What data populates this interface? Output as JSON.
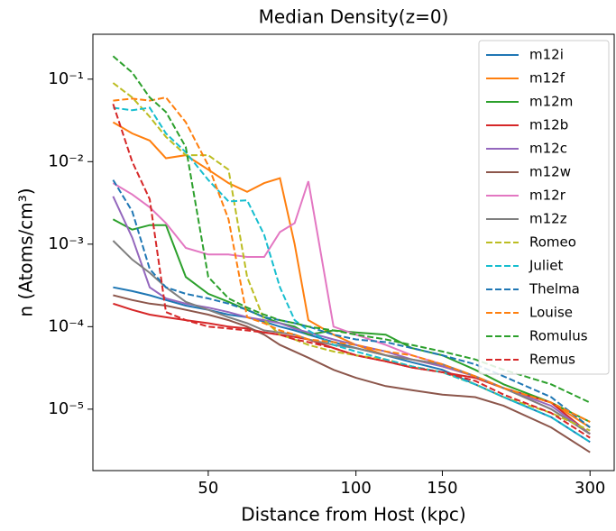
{
  "chart_data": {
    "type": "line",
    "title": "Median Density(z=0)",
    "x_label": "Distance from Host (kpc)",
    "y_label": "n (Atoms/cm³)",
    "x_scale": "log",
    "y_scale": "log",
    "legend": "upper right",
    "xlim": [
      29.1,
      336
    ],
    "ylim": [
      1.8e-06,
      0.35
    ],
    "xticks": [
      50,
      100,
      150,
      300
    ],
    "yticks": [
      {
        "value": 0.1,
        "label": "10⁻¹"
      },
      {
        "value": 0.01,
        "label": "10⁻²"
      },
      {
        "value": 0.001,
        "label": "10⁻³"
      },
      {
        "value": 0.0001,
        "label": "10⁻⁴"
      },
      {
        "value": 1e-05,
        "label": "10⁻⁵"
      }
    ],
    "x": [
      32,
      35,
      38,
      41,
      45,
      50,
      55,
      60,
      65,
      70,
      75,
      80,
      90,
      100,
      115,
      130,
      150,
      175,
      200,
      250,
      300
    ],
    "series": [
      {
        "name": "m12i",
        "color": "#1f77b4",
        "dashed": false,
        "values": [
          0.0003,
          0.00027,
          0.00024,
          0.00021,
          0.00018,
          0.00016,
          0.00014,
          0.00013,
          0.000115,
          0.0001,
          9e-05,
          8e-05,
          6.5e-05,
          5.5e-05,
          4.5e-05,
          3.7e-05,
          3e-05,
          2e-05,
          1.4e-05,
          8e-06,
          4e-06
        ]
      },
      {
        "name": "m12f",
        "color": "#ff7f0e",
        "dashed": false,
        "values": [
          0.03,
          0.022,
          0.018,
          0.011,
          0.012,
          0.008,
          0.0055,
          0.0043,
          0.0055,
          0.0063,
          0.001,
          0.00012,
          8e-05,
          6e-05,
          4.5e-05,
          4e-05,
          3.3e-05,
          2.5e-05,
          1.8e-05,
          1.2e-05,
          6e-06
        ]
      },
      {
        "name": "m12m",
        "color": "#2ca02c",
        "dashed": false,
        "values": [
          0.002,
          0.0015,
          0.0017,
          0.0017,
          0.0004,
          0.00025,
          0.0002,
          0.00016,
          0.00013,
          0.00011,
          0.0001,
          8e-05,
          9e-05,
          8.5e-05,
          8e-05,
          5.5e-05,
          4.5e-05,
          3e-05,
          2e-05,
          1.2e-05,
          7e-06
        ]
      },
      {
        "name": "m12b",
        "color": "#d62728",
        "dashed": false,
        "values": [
          0.00019,
          0.00016,
          0.00014,
          0.00013,
          0.00012,
          0.00011,
          0.0001,
          9.5e-05,
          8.5e-05,
          8e-05,
          7.5e-05,
          7e-05,
          5.5e-05,
          4.5e-05,
          3.8e-05,
          3.2e-05,
          2.8e-05,
          2.4e-05,
          1.8e-05,
          1.2e-05,
          5e-06
        ]
      },
      {
        "name": "m12c",
        "color": "#9467bd",
        "dashed": false,
        "values": [
          0.0038,
          0.0012,
          0.0003,
          0.00022,
          0.00019,
          0.00017,
          0.00015,
          0.00013,
          0.00012,
          0.00011,
          9.5e-05,
          8.5e-05,
          7e-05,
          6e-05,
          5e-05,
          4e-05,
          3.3e-05,
          2.5e-05,
          1.8e-05,
          1.1e-05,
          5e-06
        ]
      },
      {
        "name": "m12w",
        "color": "#8c564b",
        "dashed": false,
        "values": [
          0.00024,
          0.00021,
          0.00019,
          0.00018,
          0.00016,
          0.00014,
          0.00012,
          0.0001,
          8e-05,
          6e-05,
          5e-05,
          4.2e-05,
          3e-05,
          2.4e-05,
          1.9e-05,
          1.7e-05,
          1.5e-05,
          1.4e-05,
          1.1e-05,
          6e-06,
          3e-06
        ]
      },
      {
        "name": "m12r",
        "color": "#e377c2",
        "dashed": false,
        "values": [
          0.0055,
          0.004,
          0.0028,
          0.0018,
          0.0009,
          0.00075,
          0.00075,
          0.0007,
          0.0007,
          0.0014,
          0.0018,
          0.0058,
          0.0001,
          8e-05,
          6e-05,
          4.5e-05,
          3.5e-05,
          2.5e-05,
          1.8e-05,
          1e-05,
          5e-06
        ]
      },
      {
        "name": "m12z",
        "color": "#7f7f7f",
        "dashed": false,
        "values": [
          0.0011,
          0.00065,
          0.00045,
          0.0003,
          0.0002,
          0.00016,
          0.00013,
          0.00011,
          9e-05,
          8.5e-05,
          8e-05,
          7e-05,
          6e-05,
          5.5e-05,
          4.5e-05,
          4e-05,
          3.5e-05,
          2.5e-05,
          1.8e-05,
          1e-05,
          5e-06
        ]
      },
      {
        "name": "Romeo",
        "color": "#bcbd22",
        "dashed": true,
        "values": [
          0.09,
          0.06,
          0.035,
          0.02,
          0.012,
          0.012,
          0.008,
          0.0004,
          0.00012,
          8e-05,
          7e-05,
          6e-05,
          5e-05,
          4.5e-05,
          4e-05,
          3.3e-05,
          2.8e-05,
          2e-05,
          1.4e-05,
          9e-06,
          5.5e-06
        ]
      },
      {
        "name": "Juliet",
        "color": "#17becf",
        "dashed": true,
        "values": [
          0.045,
          0.042,
          0.045,
          0.022,
          0.013,
          0.006,
          0.0033,
          0.0034,
          0.0013,
          0.0003,
          0.00012,
          9e-05,
          6e-05,
          5e-05,
          4e-05,
          3.3e-05,
          2.8e-05,
          2e-05,
          1.4e-05,
          8e-06,
          4e-06
        ]
      },
      {
        "name": "Thelma",
        "color": "#1f77b4",
        "dashed": true,
        "values": [
          0.006,
          0.0025,
          0.0005,
          0.0003,
          0.00025,
          0.00022,
          0.00019,
          0.00016,
          0.00013,
          0.00012,
          0.00011,
          0.0001,
          8e-05,
          7e-05,
          6.5e-05,
          5.5e-05,
          4.5e-05,
          3.5e-05,
          2.5e-05,
          1.4e-05,
          6e-06
        ]
      },
      {
        "name": "Louise",
        "color": "#ff7f0e",
        "dashed": true,
        "values": [
          0.055,
          0.058,
          0.055,
          0.06,
          0.03,
          0.009,
          0.002,
          0.00013,
          0.00011,
          9e-05,
          8e-05,
          7e-05,
          6.5e-05,
          6e-05,
          5e-05,
          4.5e-05,
          3.5e-05,
          2.5e-05,
          1.8e-05,
          1.2e-05,
          7e-06
        ]
      },
      {
        "name": "Romulus",
        "color": "#2ca02c",
        "dashed": true,
        "values": [
          0.19,
          0.12,
          0.06,
          0.04,
          0.015,
          0.0004,
          0.00022,
          0.00017,
          0.00014,
          0.00012,
          0.00011,
          0.0001,
          9e-05,
          8e-05,
          7e-05,
          6e-05,
          5e-05,
          4e-05,
          3e-05,
          2e-05,
          1.2e-05
        ]
      },
      {
        "name": "Remus",
        "color": "#d62728",
        "dashed": true,
        "values": [
          0.05,
          0.01,
          0.0035,
          0.00015,
          0.00012,
          0.0001,
          9.5e-05,
          9e-05,
          8.5e-05,
          8e-05,
          7e-05,
          6.5e-05,
          5.5e-05,
          4.5e-05,
          3.8e-05,
          3.2e-05,
          2.8e-05,
          2.2e-05,
          1.5e-05,
          9e-06,
          4.5e-06
        ]
      }
    ]
  }
}
